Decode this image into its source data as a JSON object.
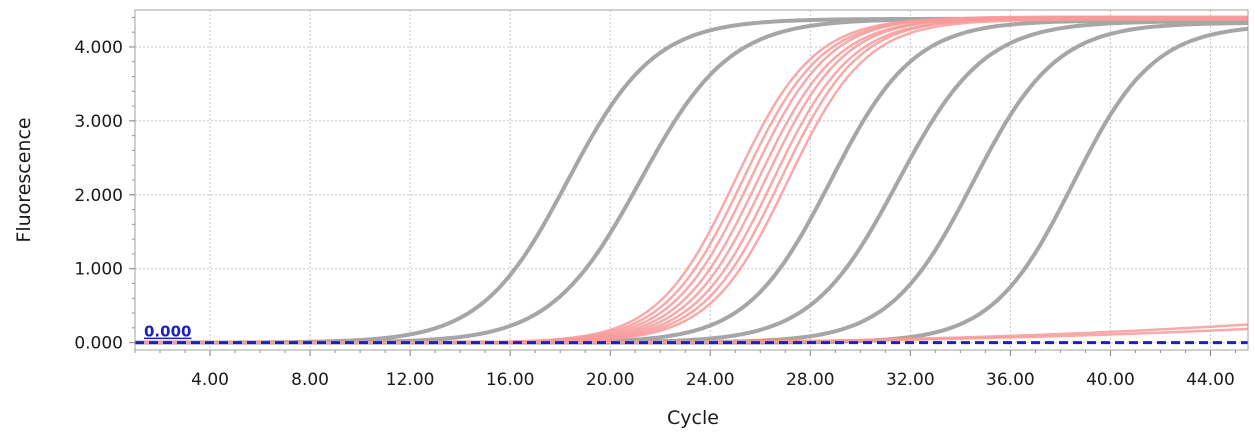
{
  "chart_data": {
    "type": "line",
    "xlabel": "Cycle",
    "ylabel": "Fluorescence",
    "xlim": [
      1,
      45.5
    ],
    "ylim": [
      -0.1,
      4.5
    ],
    "xticks": [
      4,
      8,
      12,
      16,
      20,
      24,
      28,
      32,
      36,
      40,
      44
    ],
    "xtick_labels": [
      "4.00",
      "8.00",
      "12.00",
      "16.00",
      "20.00",
      "24.00",
      "28.00",
      "32.00",
      "36.00",
      "40.00",
      "44.00"
    ],
    "yticks": [
      0,
      1,
      2,
      3,
      4
    ],
    "ytick_labels": [
      "0.000",
      "1.000",
      "2.000",
      "3.000",
      "4.000"
    ],
    "grid": true,
    "colors": {
      "gray_series": "#a6a6a6",
      "red_series": "#f79a9a",
      "threshold": "#1f1fbf",
      "grid": "#c8c8c8"
    },
    "threshold": {
      "value": 0.0,
      "label": "0.000"
    },
    "series": [
      {
        "color": "gray",
        "midpoint": 18.3,
        "slope": 0.29,
        "max": 4.38
      },
      {
        "color": "gray",
        "midpoint": 21.2,
        "slope": 0.28,
        "max": 4.38
      },
      {
        "color": "gray",
        "midpoint": 28.8,
        "slope": 0.3,
        "max": 4.36
      },
      {
        "color": "gray",
        "midpoint": 31.5,
        "slope": 0.29,
        "max": 4.35
      },
      {
        "color": "gray",
        "midpoint": 34.5,
        "slope": 0.3,
        "max": 4.33
      },
      {
        "color": "gray",
        "midpoint": 38.5,
        "slope": 0.31,
        "max": 4.3
      },
      {
        "color": "red",
        "midpoint": 25.0,
        "slope": 0.32,
        "max": 4.4
      },
      {
        "color": "red",
        "midpoint": 25.3,
        "slope": 0.32,
        "max": 4.4
      },
      {
        "color": "red",
        "midpoint": 25.6,
        "slope": 0.32,
        "max": 4.41
      },
      {
        "color": "red",
        "midpoint": 25.9,
        "slope": 0.32,
        "max": 4.39
      },
      {
        "color": "red",
        "midpoint": 26.2,
        "slope": 0.32,
        "max": 4.4
      },
      {
        "color": "red",
        "midpoint": 26.5,
        "slope": 0.32,
        "max": 4.38
      },
      {
        "color": "red",
        "midpoint": 26.8,
        "slope": 0.32,
        "max": 4.39
      },
      {
        "color": "red",
        "midpoint": 27.1,
        "slope": 0.32,
        "max": 4.37
      },
      {
        "color": "red",
        "flat": true,
        "end_value": 0.24
      },
      {
        "color": "red",
        "flat": true,
        "end_value": 0.18
      }
    ]
  }
}
